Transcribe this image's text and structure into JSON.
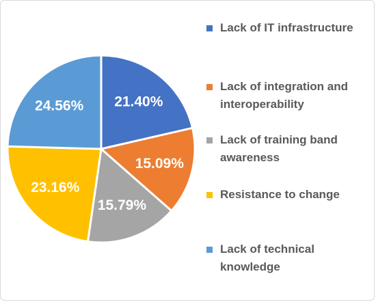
{
  "chart_data": {
    "type": "pie",
    "slices": [
      {
        "label": "Lack of IT infrastructure",
        "value": 21.4,
        "display": "21.40%",
        "color": "#4472C4"
      },
      {
        "label": "Lack of integration and interoperability",
        "value": 15.09,
        "display": "15.09%",
        "color": "#ED7D31"
      },
      {
        "label": "Lack of training band awareness",
        "value": 15.79,
        "display": "15.79%",
        "color": "#A5A5A5"
      },
      {
        "label": "Resistance to change",
        "value": 23.16,
        "display": "23.16%",
        "color": "#FFC000"
      },
      {
        "label": "Lack of technical knowledge",
        "value": 24.56,
        "display": "24.56%",
        "color": "#5B9BD5"
      }
    ],
    "legend_position": "right",
    "start_angle_deg": 0,
    "direction": "clockwise"
  },
  "legend": {
    "items": [
      {
        "label": "Lack of IT infrastructure",
        "color": "#4472C4"
      },
      {
        "label": "Lack of integration and interoperability",
        "color": "#ED7D31"
      },
      {
        "label": "Lack of training band awareness",
        "color": "#A5A5A5"
      },
      {
        "label": "Resistance to change",
        "color": "#FFC000"
      },
      {
        "label": "Lack of technical knowledge",
        "color": "#5B9BD5"
      }
    ]
  }
}
